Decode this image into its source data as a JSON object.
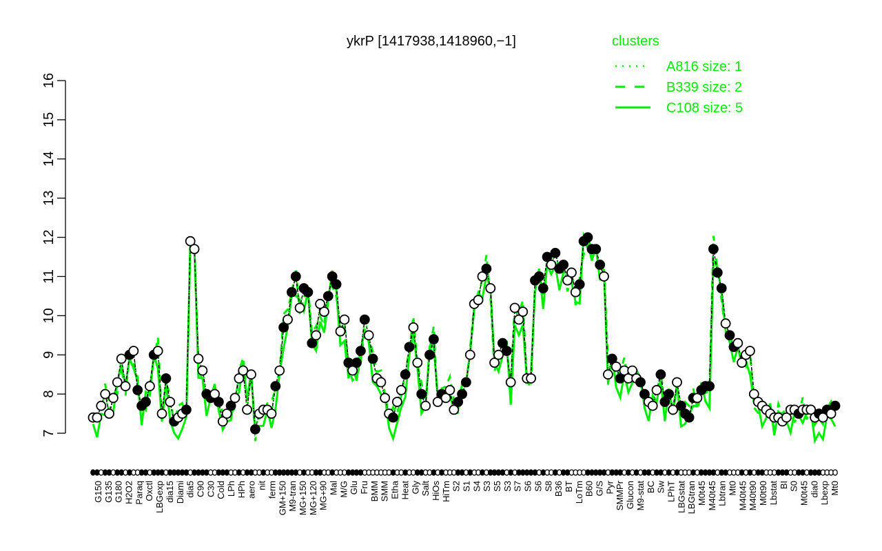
{
  "chart_data": {
    "type": "line",
    "title": "ykrP [1417938,1418960,−1]",
    "xlabel": "",
    "ylabel": "",
    "ylim": [
      7,
      16
    ],
    "yticks": [
      7,
      8,
      9,
      10,
      11,
      12,
      13,
      14,
      15,
      16
    ],
    "grid": false,
    "legend": {
      "title": "clusters",
      "position": "top-right",
      "color": "#00ee00",
      "entries": [
        {
          "name": "A816 size: 1",
          "style": "dotted"
        },
        {
          "name": "B339 size: 2",
          "style": "dashed"
        },
        {
          "name": "C108 size: 5",
          "style": "solid"
        }
      ]
    },
    "x_tick_labels": [
      "G150",
      "G180",
      "Paraq",
      "LBGexp",
      "Diami",
      "C90",
      "Cold",
      "HPh",
      "nit",
      "GM+150",
      "MG+150",
      "MG+90",
      "M/G",
      "Fru",
      "SMM",
      "Heat",
      "Salt",
      "HiTm",
      "S1",
      "S3",
      "S3",
      "S6",
      "S8",
      "BT",
      "B60",
      "Pyr",
      "Glucon",
      "BC",
      "LPhT",
      "LBGtran",
      "M40t45",
      "Mt0",
      "M40t90",
      "Lbstat",
      "S0",
      "dia0",
      "Mt0"
    ],
    "x_tick_labels_upper": [
      "G135",
      "H2O2",
      "Oxctl",
      "dia15",
      "dia5",
      "C30",
      "LPh",
      "aero",
      "ferm",
      "M9-tran",
      "MG+120",
      "Mal",
      "Glu",
      "BMM",
      "Etha",
      "Gly",
      "HiOs",
      "S2",
      "S4",
      "S5",
      "S7",
      "S6",
      "B36",
      "LoTm",
      "G/S",
      "SMMPr",
      "M9-stat",
      "Sw",
      "LBGstat",
      "M0t45",
      "Lbtran",
      "M40t45",
      "M0t90",
      "BI",
      "M0t45",
      "Lbexp"
    ],
    "series": [
      {
        "name": "expression",
        "color": "#000000",
        "marker": "circle",
        "values": [
          7.4,
          7.4,
          7.7,
          8.0,
          7.5,
          7.9,
          8.3,
          8.9,
          8.2,
          9.0,
          9.1,
          8.1,
          7.7,
          7.8,
          8.2,
          9.0,
          9.1,
          7.5,
          8.4,
          7.8,
          7.3,
          7.4,
          7.5,
          7.6,
          11.9,
          11.7,
          8.9,
          8.6,
          8.0,
          7.9,
          8.0,
          7.8,
          7.3,
          7.5,
          7.7,
          7.9,
          8.4,
          8.6,
          7.6,
          8.5,
          7.1,
          7.5,
          7.6,
          7.6,
          7.5,
          8.2,
          8.6,
          9.7,
          9.9,
          10.6,
          11.0,
          10.2,
          10.7,
          10.6,
          9.3,
          9.5,
          10.3,
          10.1,
          10.5,
          11.0,
          10.8,
          9.6,
          9.9,
          8.8,
          8.6,
          8.8,
          9.1,
          9.9,
          9.5,
          8.9,
          8.4,
          8.3,
          7.9,
          7.5,
          7.4,
          7.8,
          8.1,
          8.5,
          9.2,
          9.7,
          8.8,
          8.0,
          7.7,
          9.0,
          9.4,
          7.8,
          8.0,
          7.9,
          8.1,
          7.6,
          7.8,
          8.0,
          8.3,
          9.0,
          10.3,
          10.4,
          11.0,
          11.2,
          10.7,
          8.8,
          9.0,
          9.3,
          9.1,
          8.3,
          10.2,
          9.9,
          10.1,
          8.4,
          8.4,
          10.9,
          11.0,
          10.7,
          11.5,
          11.3,
          11.6,
          11.2,
          11.3,
          10.9,
          11.1,
          10.6,
          10.8,
          11.9,
          12.0,
          11.7,
          11.7,
          11.3,
          11.0,
          8.5,
          8.9,
          8.7,
          8.4,
          8.6,
          8.4,
          8.6,
          8.4,
          8.3,
          8.0,
          7.8,
          7.7,
          8.1,
          8.5,
          7.8,
          8.0,
          7.6,
          8.3,
          7.7,
          7.5,
          7.4,
          7.9,
          7.9,
          8.1,
          8.2,
          8.2,
          11.7,
          11.1,
          10.7,
          9.8,
          9.5,
          9.2,
          9.3,
          8.8,
          9.0,
          9.1,
          8.0,
          7.8,
          7.7,
          7.6,
          7.5,
          7.4,
          7.4,
          7.3,
          7.4,
          7.6,
          7.6,
          7.5,
          7.6,
          7.6,
          7.6,
          7.4,
          7.5,
          7.4,
          7.6,
          7.5,
          7.7
        ]
      },
      {
        "name": "C108 size: 5",
        "color": "#00ee00",
        "style": "solid"
      },
      {
        "name": "B339 size: 2",
        "color": "#00ee00",
        "style": "dashed"
      },
      {
        "name": "A816 size: 1",
        "color": "#00ee00",
        "style": "dotted"
      }
    ]
  }
}
